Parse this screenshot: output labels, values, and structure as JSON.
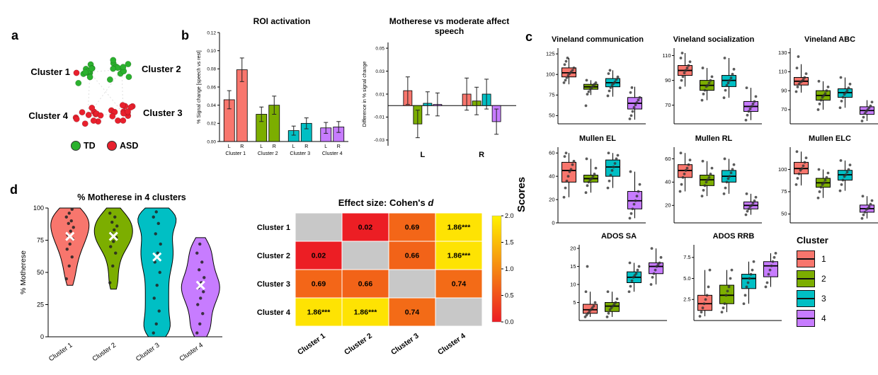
{
  "cluster_colors": [
    "#F8766D",
    "#7CAE00",
    "#00BFC4",
    "#C77CFF"
  ],
  "panels": {
    "a": {
      "letter": "a",
      "legend": [
        {
          "label": "TD",
          "color": "#2BB12E"
        },
        {
          "label": "ASD",
          "color": "#E8202D"
        }
      ],
      "clusters": [
        {
          "name": "Cluster 1",
          "side": "left",
          "td": 13,
          "asd": 1
        },
        {
          "name": "Cluster 2",
          "side": "right",
          "td": 12,
          "asd": 0
        },
        {
          "name": "Cluster 4",
          "side": "left",
          "td": 0,
          "asd": 12
        },
        {
          "name": "Cluster 3",
          "side": "right",
          "td": 0,
          "asd": 14
        }
      ]
    },
    "b": {
      "letter": "b"
    },
    "c": {
      "letter": "c",
      "ylabel": "Scores",
      "legend_title": "Cluster",
      "legend_items": [
        {
          "label": "1",
          "color": "#F8766D"
        },
        {
          "label": "2",
          "color": "#7CAE00"
        },
        {
          "label": "3",
          "color": "#00BFC4"
        },
        {
          "label": "4",
          "color": "#C77CFF"
        }
      ]
    },
    "d": {
      "letter": "d"
    }
  },
  "chart_data": [
    {
      "id": "roi_activation",
      "type": "bar",
      "title": "ROI activation",
      "ylabel": "% Signal change [speech vs rest]",
      "ylim": [
        0,
        0.12
      ],
      "yticks": [
        0,
        0.02,
        0.04,
        0.06,
        0.08,
        0.1,
        0.12
      ],
      "groups": [
        {
          "label": "Cluster 1",
          "color": "#F8766D",
          "bars": [
            {
              "label": "L",
              "value": 0.046,
              "error": 0.01
            },
            {
              "label": "R",
              "value": 0.079,
              "error": 0.013
            }
          ]
        },
        {
          "label": "Cluster 2",
          "color": "#7CAE00",
          "bars": [
            {
              "label": "L",
              "value": 0.03,
              "error": 0.008
            },
            {
              "label": "R",
              "value": 0.04,
              "error": 0.01
            }
          ]
        },
        {
          "label": "Cluster 3",
          "color": "#00BFC4",
          "bars": [
            {
              "label": "L",
              "value": 0.012,
              "error": 0.005
            },
            {
              "label": "R",
              "value": 0.02,
              "error": 0.006
            }
          ]
        },
        {
          "label": "Cluster 4",
          "color": "#C77CFF",
          "bars": [
            {
              "label": "L",
              "value": 0.015,
              "error": 0.006
            },
            {
              "label": "R",
              "value": 0.016,
              "error": 0.006
            }
          ]
        }
      ]
    },
    {
      "id": "motherese_diff",
      "type": "diffbar",
      "title": "Motherese vs moderate affect speech",
      "ylabel": "Difference in % signal change",
      "ylim": [
        -0.035,
        0.055
      ],
      "yticks": [
        -0.03,
        -0.01,
        0.01,
        0.03,
        0.05
      ],
      "groups": [
        "L",
        "R"
      ],
      "series": [
        {
          "name": "Cluster 1",
          "color": "#F8766D",
          "values": [
            0.013,
            0.01
          ],
          "errors": [
            0.012,
            0.014
          ]
        },
        {
          "name": "Cluster 2",
          "color": "#7CAE00",
          "values": [
            -0.016,
            0.004
          ],
          "errors": [
            0.012,
            0.012
          ]
        },
        {
          "name": "Cluster 3",
          "color": "#00BFC4",
          "values": [
            0.002,
            0.01
          ],
          "errors": [
            0.01,
            0.013
          ]
        },
        {
          "name": "Cluster 4",
          "color": "#C77CFF",
          "values": [
            0.001,
            -0.014
          ],
          "errors": [
            0.01,
            0.011
          ]
        }
      ]
    },
    {
      "id": "vineland_communication",
      "type": "boxplot",
      "title": "Vineland communication",
      "ylim": [
        40,
        132
      ],
      "yticks": [
        50,
        75,
        100,
        125
      ],
      "ytick_labels": [
        "50",
        "75",
        "100",
        "125"
      ],
      "boxes": [
        {
          "whislo": 88,
          "q1": 97,
          "med": 102,
          "q3": 108,
          "whishi": 120
        },
        {
          "whislo": 75,
          "q1": 82,
          "med": 85,
          "q3": 88,
          "whishi": 93
        },
        {
          "whislo": 73,
          "q1": 85,
          "med": 90,
          "q3": 95,
          "whishi": 105
        },
        {
          "whislo": 45,
          "q1": 58,
          "med": 65,
          "q3": 72,
          "whishi": 85
        }
      ],
      "points": [
        [
          90,
          93,
          96,
          99,
          101,
          103,
          105,
          108,
          112,
          116,
          120
        ],
        [
          62,
          76,
          79,
          82,
          84,
          86,
          88,
          90,
          93
        ],
        [
          74,
          80,
          84,
          87,
          89,
          91,
          94,
          97,
          101,
          105
        ],
        [
          46,
          50,
          55,
          60,
          63,
          66,
          69,
          72,
          78,
          84
        ]
      ]
    },
    {
      "id": "vineland_socialization",
      "type": "boxplot",
      "title": "Vineland socialization",
      "ylim": [
        55,
        116
      ],
      "yticks": [
        70,
        90,
        110
      ],
      "ytick_labels": [
        "70",
        "90",
        "110"
      ],
      "boxes": [
        {
          "whislo": 85,
          "q1": 94,
          "med": 98,
          "q3": 102,
          "whishi": 112
        },
        {
          "whislo": 74,
          "q1": 82,
          "med": 86,
          "q3": 90,
          "whishi": 100
        },
        {
          "whislo": 76,
          "q1": 85,
          "med": 90,
          "q3": 94,
          "whishi": 108
        },
        {
          "whislo": 58,
          "q1": 65,
          "med": 69,
          "q3": 73,
          "whishi": 84
        }
      ],
      "points": [
        [
          84,
          90,
          93,
          96,
          98,
          100,
          102,
          105,
          108,
          112
        ],
        [
          74,
          79,
          82,
          85,
          86,
          88,
          90,
          93,
          100
        ],
        [
          76,
          82,
          86,
          88,
          90,
          92,
          95,
          99,
          108
        ],
        [
          58,
          62,
          65,
          67,
          69,
          71,
          73,
          77,
          84
        ]
      ]
    },
    {
      "id": "vineland_abc",
      "type": "boxplot",
      "title": "Vineland ABC",
      "ylim": [
        55,
        135
      ],
      "yticks": [
        70,
        90,
        110,
        130
      ],
      "ytick_labels": [
        "70",
        "90",
        "110",
        "130"
      ],
      "boxes": [
        {
          "whislo": 88,
          "q1": 96,
          "med": 100,
          "q3": 104,
          "whishi": 118
        },
        {
          "whislo": 70,
          "q1": 80,
          "med": 85,
          "q3": 90,
          "whishi": 100
        },
        {
          "whislo": 72,
          "q1": 83,
          "med": 88,
          "q3": 92,
          "whishi": 104
        },
        {
          "whislo": 58,
          "q1": 65,
          "med": 69,
          "q3": 73,
          "whishi": 80
        }
      ],
      "points": [
        [
          89,
          94,
          97,
          99,
          100,
          102,
          104,
          108,
          114,
          126
        ],
        [
          70,
          76,
          80,
          83,
          85,
          87,
          90,
          94,
          100
        ],
        [
          72,
          79,
          83,
          86,
          88,
          90,
          93,
          97,
          104
        ],
        [
          58,
          62,
          66,
          68,
          70,
          72,
          74,
          78
        ]
      ]
    },
    {
      "id": "mullen_el",
      "type": "boxplot",
      "title": "Mullen EL",
      "ylim": [
        0,
        65
      ],
      "yticks": [
        0,
        20,
        40,
        60
      ],
      "ytick_labels": [
        "0",
        "20",
        "40",
        "60"
      ],
      "boxes": [
        {
          "whislo": 22,
          "q1": 35,
          "med": 45,
          "q3": 52,
          "whishi": 60
        },
        {
          "whislo": 26,
          "q1": 35,
          "med": 38,
          "q3": 41,
          "whishi": 55
        },
        {
          "whislo": 30,
          "q1": 40,
          "med": 48,
          "q3": 54,
          "whishi": 60
        },
        {
          "whislo": 4,
          "q1": 12,
          "med": 19,
          "q3": 27,
          "whishi": 44
        }
      ],
      "points": [
        [
          22,
          30,
          36,
          40,
          44,
          46,
          50,
          53,
          57,
          60
        ],
        [
          26,
          32,
          35,
          37,
          38,
          40,
          42,
          47,
          55
        ],
        [
          30,
          36,
          41,
          45,
          48,
          51,
          55,
          58,
          60
        ],
        [
          4,
          8,
          12,
          16,
          19,
          23,
          27,
          33,
          44
        ]
      ]
    },
    {
      "id": "mullen_rl",
      "type": "boxplot",
      "title": "Mullen RL",
      "ylim": [
        5,
        70
      ],
      "yticks": [
        20,
        40,
        60
      ],
      "ytick_labels": [
        "20",
        "40",
        "60"
      ],
      "boxes": [
        {
          "whislo": 32,
          "q1": 44,
          "med": 50,
          "q3": 55,
          "whishi": 65
        },
        {
          "whislo": 28,
          "q1": 37,
          "med": 42,
          "q3": 46,
          "whishi": 58
        },
        {
          "whislo": 30,
          "q1": 40,
          "med": 45,
          "q3": 50,
          "whishi": 60
        },
        {
          "whislo": 12,
          "q1": 17,
          "med": 20,
          "q3": 23,
          "whishi": 30
        }
      ],
      "points": [
        [
          32,
          38,
          44,
          47,
          50,
          52,
          55,
          59,
          65
        ],
        [
          28,
          33,
          37,
          40,
          42,
          44,
          47,
          52,
          58
        ],
        [
          30,
          35,
          40,
          43,
          45,
          48,
          51,
          55,
          60
        ],
        [
          12,
          15,
          17,
          19,
          20,
          22,
          24,
          27,
          30
        ]
      ]
    },
    {
      "id": "mullen_elc",
      "type": "boxplot",
      "title": "Mullen ELC",
      "ylim": [
        40,
        125
      ],
      "yticks": [
        50,
        75,
        100
      ],
      "ytick_labels": [
        "50",
        "75",
        "100"
      ],
      "boxes": [
        {
          "whislo": 82,
          "q1": 95,
          "med": 101,
          "q3": 108,
          "whishi": 120
        },
        {
          "whislo": 68,
          "q1": 80,
          "med": 85,
          "q3": 90,
          "whishi": 100
        },
        {
          "whislo": 76,
          "q1": 88,
          "med": 94,
          "q3": 99,
          "whishi": 110
        },
        {
          "whislo": 45,
          "q1": 52,
          "med": 56,
          "q3": 60,
          "whishi": 70
        }
      ],
      "points": [
        [
          83,
          90,
          95,
          99,
          101,
          104,
          108,
          113,
          120
        ],
        [
          68,
          75,
          80,
          83,
          85,
          88,
          91,
          96,
          100
        ],
        [
          76,
          83,
          88,
          92,
          94,
          97,
          100,
          105,
          110
        ],
        [
          45,
          49,
          52,
          55,
          56,
          58,
          61,
          65,
          70
        ]
      ]
    },
    {
      "id": "ados_sa",
      "type": "boxplot",
      "title": "ADOS SA",
      "ylim": [
        0,
        21
      ],
      "yticks": [
        5,
        10,
        15,
        20
      ],
      "ytick_labels": [
        "5",
        "10",
        "15",
        "20"
      ],
      "boxes": [
        {
          "whislo": 1,
          "q1": 2,
          "med": 3,
          "q3": 4.5,
          "whishi": 8
        },
        {
          "whislo": 1,
          "q1": 2.5,
          "med": 4,
          "q3": 5,
          "whishi": 8
        },
        {
          "whislo": 8,
          "q1": 10.5,
          "med": 12,
          "q3": 13.5,
          "whishi": 16
        },
        {
          "whislo": 10,
          "q1": 13,
          "med": 15,
          "q3": 16,
          "whishi": 20
        }
      ],
      "points": [
        [
          1,
          1.5,
          2,
          2.5,
          3,
          3.5,
          4,
          5,
          8,
          15
        ],
        [
          1,
          2,
          3,
          3.5,
          4,
          4.5,
          5,
          6,
          8
        ],
        [
          8,
          9.5,
          11,
          12,
          12.5,
          13,
          14,
          15,
          16
        ],
        [
          10,
          12,
          13,
          14,
          15,
          15.5,
          16,
          17.5,
          20
        ]
      ]
    },
    {
      "id": "ados_rrb",
      "type": "boxplot",
      "title": "ADOS RRB",
      "ylim": [
        0,
        9
      ],
      "yticks": [
        2.5,
        5,
        7.5
      ],
      "ytick_labels": [
        "2.5",
        "5.0",
        "7.5"
      ],
      "boxes": [
        {
          "whislo": 0.5,
          "q1": 1.2,
          "med": 2,
          "q3": 3,
          "whishi": 6
        },
        {
          "whislo": 1,
          "q1": 2,
          "med": 3,
          "q3": 4.2,
          "whishi": 6
        },
        {
          "whislo": 2,
          "q1": 3.8,
          "med": 5,
          "q3": 5.5,
          "whishi": 7
        },
        {
          "whislo": 4,
          "q1": 5.2,
          "med": 6.5,
          "q3": 7,
          "whishi": 8
        }
      ],
      "points": [
        [
          0.5,
          1,
          1.5,
          2,
          2.5,
          3,
          4,
          6
        ],
        [
          1,
          1.5,
          2,
          3,
          3.5,
          4,
          5,
          6
        ],
        [
          2,
          3,
          4,
          4.5,
          5,
          5.5,
          6,
          7
        ],
        [
          4,
          4.5,
          5.5,
          6,
          6.5,
          7,
          7.5,
          8
        ]
      ]
    },
    {
      "id": "motherese_violin",
      "type": "violin",
      "title": "% Motherese in 4 clusters",
      "ylabel": "% Motherese",
      "ylim": [
        0,
        100
      ],
      "yticks": [
        0,
        25,
        50,
        75,
        100
      ],
      "ytick_labels": [
        "0",
        "25",
        "50",
        "75",
        "100"
      ],
      "categories": [
        "Cluster 1",
        "Cluster 2",
        "Cluster 3",
        "Cluster 4"
      ],
      "means": [
        78,
        78,
        62,
        40
      ],
      "points": [
        [
          45,
          55,
          62,
          68,
          72,
          76,
          79,
          82,
          85,
          88,
          90,
          93,
          96,
          99
        ],
        [
          42,
          55,
          65,
          70,
          74,
          77,
          80,
          83,
          86,
          89,
          93,
          96
        ],
        [
          3,
          10,
          20,
          30,
          40,
          50,
          58,
          65,
          72,
          80,
          88,
          93,
          97
        ],
        [
          3,
          10,
          18,
          25,
          30,
          35,
          38,
          42,
          46,
          52,
          58,
          65,
          72
        ]
      ]
    },
    {
      "id": "effect_size",
      "type": "heatmap",
      "title_prefix": "Effect size: Cohen's ",
      "title_italic": "d",
      "rows": [
        "Cluster 1",
        "Cluster 2",
        "Cluster 3",
        "Cluster 4"
      ],
      "cols": [
        "Cluster 1",
        "Cluster 2",
        "Cluster 3",
        "Cluster 4"
      ],
      "cells": [
        [
          null,
          0.02,
          0.69,
          1.86
        ],
        [
          0.02,
          null,
          0.66,
          1.86
        ],
        [
          0.69,
          0.66,
          null,
          0.74
        ],
        [
          1.86,
          1.86,
          0.74,
          null
        ]
      ],
      "cell_labels": [
        [
          "",
          "0.02",
          "0.69",
          "1.86***"
        ],
        [
          "0.02",
          "",
          "0.66",
          "1.86***"
        ],
        [
          "0.69",
          "0.66",
          "",
          "0.74"
        ],
        [
          "1.86***",
          "1.86***",
          "0.74",
          ""
        ]
      ],
      "scale": {
        "min": 0,
        "max": 2,
        "ticks": [
          "0.0",
          "0.5",
          "1.0",
          "1.5",
          "2.0"
        ],
        "low_color": "#EC1C24",
        "high_color": "#FFF200",
        "na_color": "#C8C8C8"
      }
    }
  ]
}
